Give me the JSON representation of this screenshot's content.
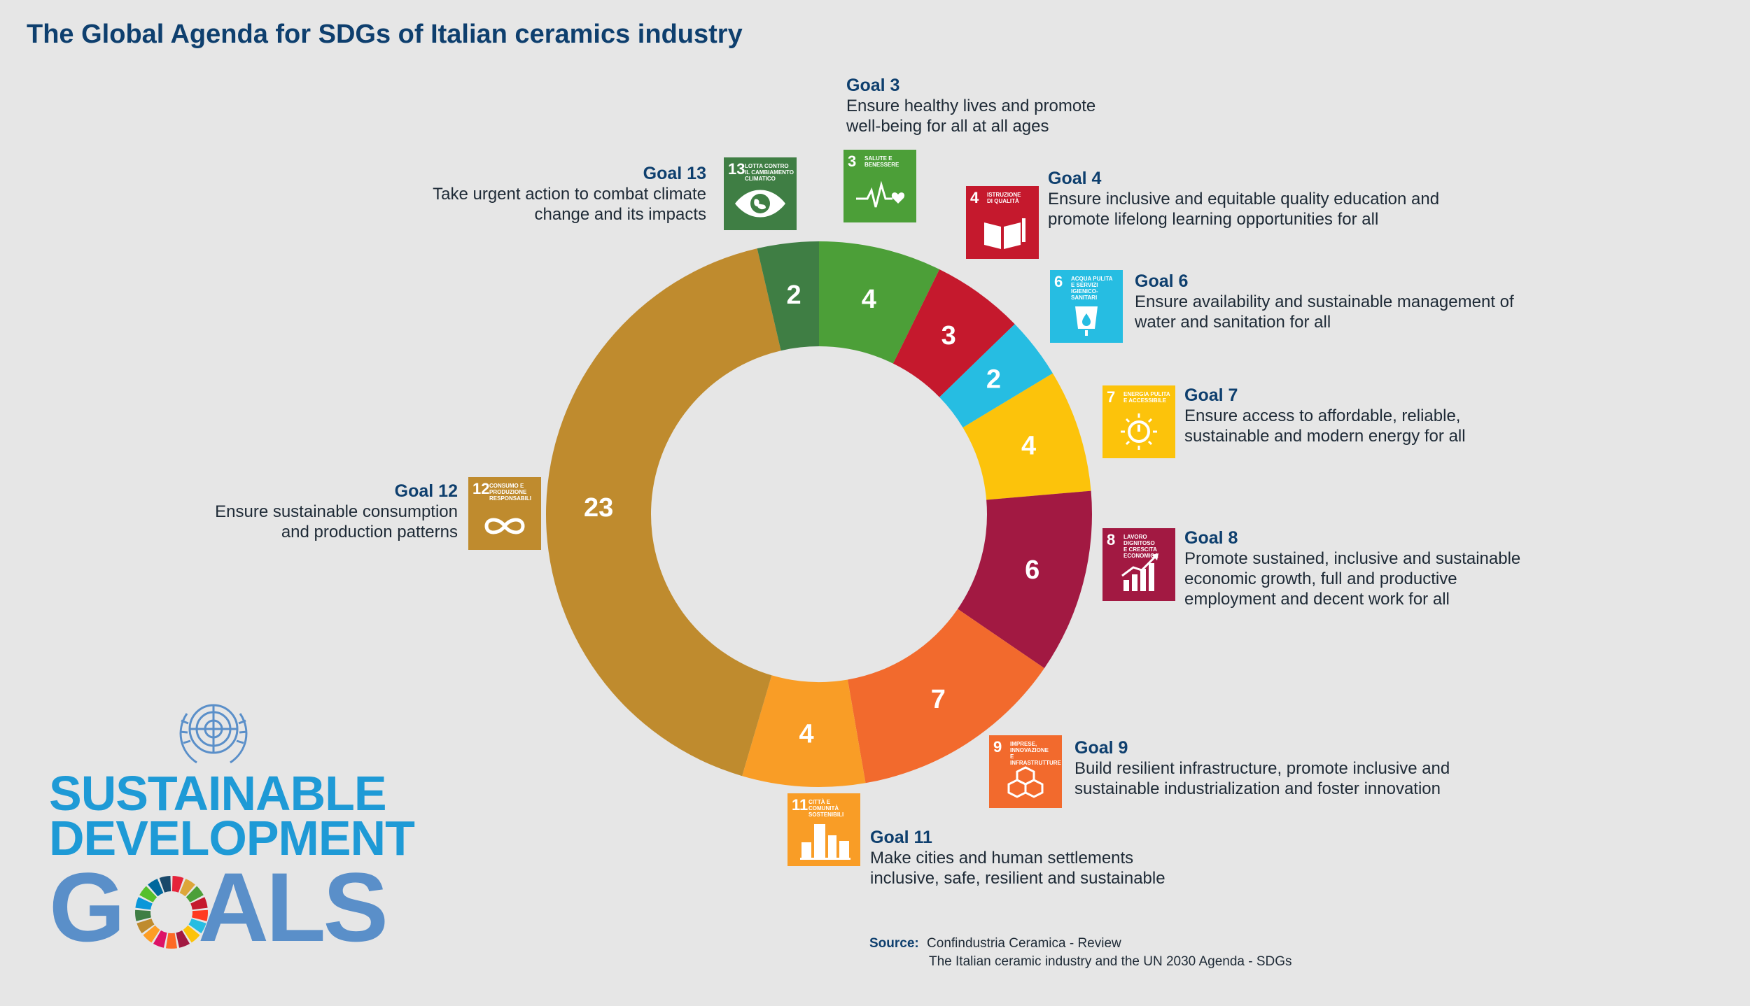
{
  "chart_data": {
    "type": "pie",
    "title": "The Global Agenda for SDGs of Italian ceramics industry",
    "donut": true,
    "categories": [
      "Goal 3",
      "Goal 4",
      "Goal 6",
      "Goal 7",
      "Goal 8",
      "Goal 9",
      "Goal 11",
      "Goal 12",
      "Goal 13"
    ],
    "values": [
      4,
      3,
      2,
      4,
      6,
      7,
      4,
      23,
      2
    ],
    "colors": [
      "#4c9f38",
      "#c5192d",
      "#26bde2",
      "#fcc30b",
      "#a21942",
      "#f26a2d",
      "#f99d26",
      "#bf8b2e",
      "#3f7e44"
    ]
  },
  "goals": [
    {
      "id": "3",
      "name": "Goal 3",
      "desc": "Ensure healthy lives and promote\nwell-being for all at all ages",
      "tile_text": "SALUTE E\nBENESSERE",
      "color": "#4c9f38"
    },
    {
      "id": "4",
      "name": "Goal 4",
      "desc": "Ensure inclusive and equitable quality education and\npromote lifelong learning opportunities for all",
      "tile_text": "ISTRUZIONE\nDI QUALITÀ",
      "color": "#c5192d"
    },
    {
      "id": "6",
      "name": "Goal 6",
      "desc": "Ensure availability and sustainable management of\nwater and sanitation for all",
      "tile_text": "ACQUA PULITA\nE SERVIZI\nIGIENICO-SANITARI",
      "color": "#26bde2"
    },
    {
      "id": "7",
      "name": "Goal 7",
      "desc": "Ensure access to affordable, reliable,\nsustainable and modern energy for all",
      "tile_text": "ENERGIA PULITA\nE ACCESSIBILE",
      "color": "#fcc30b"
    },
    {
      "id": "8",
      "name": "Goal 8",
      "desc": "Promote sustained, inclusive and sustainable\neconomic growth, full and productive\nemployment and decent work for all",
      "tile_text": "LAVORO DIGNITOSO\nE CRESCITA\nECONOMICA",
      "color": "#a21942"
    },
    {
      "id": "9",
      "name": "Goal 9",
      "desc": "Build resilient infrastructure, promote inclusive and\nsustainable industrialization and foster innovation",
      "tile_text": "IMPRESE,\nINNOVAZIONE\nE INFRASTRUTTURE",
      "color": "#f26a2d"
    },
    {
      "id": "11",
      "name": "Goal 11",
      "desc": "Make cities and human settlements\ninclusive, safe, resilient and sustainable",
      "tile_text": "CITTÀ E COMUNITÀ\nSOSTENIBILI",
      "color": "#f99d26"
    },
    {
      "id": "12",
      "name": "Goal 12",
      "desc": "Ensure sustainable consumption\nand production patterns",
      "tile_text": "CONSUMO E\nPRODUZIONE\nRESPONSABILI",
      "color": "#bf8b2e"
    },
    {
      "id": "13",
      "name": "Goal 13",
      "desc": "Take urgent action to combat climate\nchange and its impacts",
      "tile_text": "LOTTA CONTRO\nIL CAMBIAMENTO\nCLIMATICO",
      "color": "#3f7e44"
    }
  ],
  "source": {
    "label": "Source:",
    "line1": "Confindustria Ceramica - Review",
    "line2": "The Italian ceramic industry and the UN 2030 Agenda - SDGs"
  },
  "logo": {
    "line1": "SUSTAINABLE",
    "line2": "DEVELOPMENT",
    "goals_left": "G",
    "goals_right": "ALS"
  }
}
